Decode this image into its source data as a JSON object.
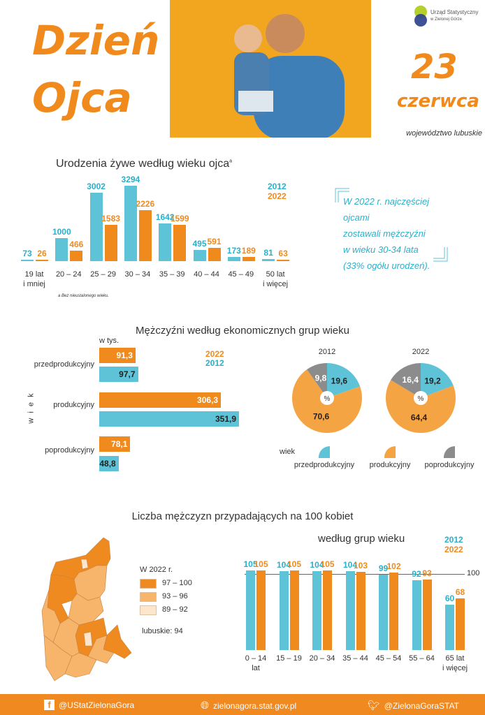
{
  "header": {
    "title_line1": "Dzień",
    "title_line2": "Ojca",
    "date_day": "23",
    "date_month": "czerwca",
    "region": "województwo lubuskie",
    "logo": {
      "line1": "Urząd Statystyczny",
      "line2": "w Zielonej Górze"
    }
  },
  "callout": {
    "lines": [
      "W 2022 r. najczęściej ojcami",
      "zostawali mężczyźni",
      "w wieku 30-34 lata",
      "(33% ogółu urodzeń)."
    ]
  },
  "colors": {
    "c2012": "#5ec3d6",
    "c2022": "#f18a1c",
    "text2012": "#2ab0c9",
    "pie_prod": "#f5a444",
    "pie_post": "#8c8c8c",
    "map_high": "#ef8a20",
    "map_mid": "#f6b56b",
    "map_low": "#fde6cc"
  },
  "chart_data": [
    {
      "type": "bar",
      "title": "Urodzenia żywe według wieku ojca",
      "title_sup": "a",
      "footnote": "a Bez nieustalonego wieku.",
      "categories": [
        "19 lat\ni mniej",
        "20 – 24",
        "25 – 29",
        "30 – 34",
        "35 – 39",
        "40 – 44",
        "45 – 49",
        "50 lat\ni więcej"
      ],
      "series": [
        {
          "name": "2012",
          "values": [
            73,
            1000,
            3002,
            3294,
            1642,
            495,
            173,
            81
          ]
        },
        {
          "name": "2022",
          "values": [
            26,
            466,
            1583,
            2226,
            1599,
            591,
            189,
            63
          ]
        }
      ],
      "legend": "top-right"
    },
    {
      "type": "bar",
      "orientation": "horizontal",
      "title": "Mężczyźni według ekonomicznych grup wieku",
      "unit": "w tys.",
      "ylabel": "w i e k",
      "categories": [
        "przedprodukcyjny",
        "produkcyjny",
        "poprodukcyjny"
      ],
      "series": [
        {
          "name": "2022",
          "values": [
            "91,3",
            "306,3",
            "78,1"
          ]
        },
        {
          "name": "2012",
          "values": [
            "97,7",
            "351,9",
            "48,8"
          ]
        }
      ]
    },
    {
      "type": "pie",
      "center_label": "%",
      "legend_title": "wiek",
      "categories": [
        "przedprodukcyjny",
        "produkcyjny",
        "poprodukcyjny"
      ],
      "pies": [
        {
          "name": "2012",
          "values": [
            "19,6",
            "70,6",
            "9,8"
          ]
        },
        {
          "name": "2022",
          "values": [
            "19,2",
            "64,4",
            "16,4"
          ]
        }
      ]
    },
    {
      "type": "bar",
      "title": "Liczba mężczyzn przypadających na 100 kobiet",
      "subtitle": "według grup wieku",
      "reference_line": "100",
      "categories": [
        "0 – 14\nlat",
        "15 – 19",
        "20 – 34",
        "35 – 44",
        "45 – 54",
        "55 – 64",
        "65 lat\ni więcej"
      ],
      "series": [
        {
          "name": "2012",
          "values": [
            105,
            104,
            104,
            104,
            99,
            92,
            60
          ]
        },
        {
          "name": "2022",
          "values": [
            105,
            105,
            105,
            103,
            102,
            93,
            68
          ]
        }
      ]
    }
  ],
  "map": {
    "legend_title": "W 2022 r.",
    "classes": [
      "97 – 100",
      "93 – 96",
      "89 – 92"
    ],
    "total": "lubuskie: 94"
  },
  "footer": {
    "facebook": "@UStatZielonaGora",
    "website": "zielonagora.stat.gov.pl",
    "twitter": "@ZielonaGoraSTAT"
  }
}
